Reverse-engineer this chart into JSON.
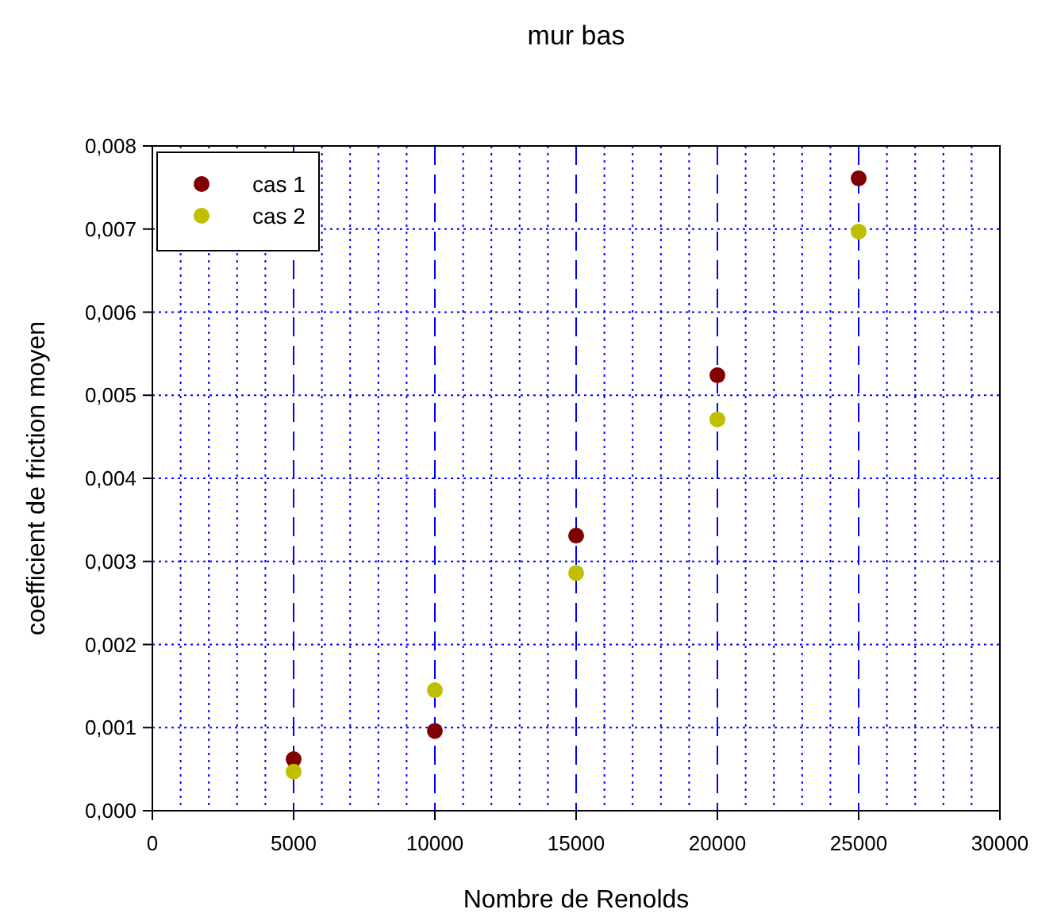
{
  "chart_data": {
    "type": "scatter",
    "title": "mur bas",
    "xlabel": "Nombre de Renolds",
    "ylabel": "coefficient de friction moyen",
    "x": [
      5000,
      10000,
      15000,
      20000,
      25000
    ],
    "series": [
      {
        "name": "cas 1",
        "color": "#800000",
        "values": [
          0.00062,
          0.00096,
          0.00331,
          0.00524,
          0.00761
        ]
      },
      {
        "name": "cas 2",
        "color": "#bfbf00",
        "values": [
          0.00047,
          0.00145,
          0.00286,
          0.00471,
          0.00697
        ]
      }
    ],
    "xlim": [
      0,
      30000
    ],
    "xticks": [
      0,
      5000,
      10000,
      15000,
      20000,
      25000,
      30000
    ],
    "ylim": [
      0,
      0.008
    ],
    "yticks": [
      {
        "value": 0,
        "label": "0,000"
      },
      {
        "value": 0.001,
        "label": "0,001"
      },
      {
        "value": 0.002,
        "label": "0,002"
      },
      {
        "value": 0.003,
        "label": "0,003"
      },
      {
        "value": 0.004,
        "label": "0,004"
      },
      {
        "value": 0.005,
        "label": "0,005"
      },
      {
        "value": 0.006,
        "label": "0,006"
      },
      {
        "value": 0.007,
        "label": "0,007"
      },
      {
        "value": 0.008,
        "label": "0,008"
      }
    ],
    "grid": true,
    "legend": "top left",
    "marker": "circle"
  }
}
